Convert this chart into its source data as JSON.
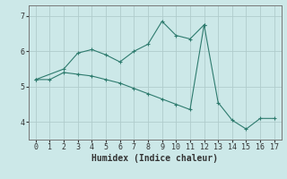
{
  "line1_x": [
    0,
    1,
    2,
    3,
    4,
    5,
    6,
    7,
    8,
    9,
    10,
    11,
    12,
    13,
    14,
    15,
    16,
    17
  ],
  "line1_y": [
    5.2,
    5.2,
    5.4,
    5.35,
    5.3,
    5.2,
    5.1,
    4.95,
    4.8,
    4.65,
    4.5,
    4.35,
    6.75,
    4.55,
    4.05,
    3.8,
    4.1,
    4.1
  ],
  "line2_x": [
    0,
    2,
    3,
    4,
    5,
    6,
    7,
    8,
    9,
    10,
    11,
    12
  ],
  "line2_y": [
    5.2,
    5.5,
    5.95,
    6.05,
    5.9,
    5.7,
    6.0,
    6.2,
    6.85,
    6.45,
    6.35,
    6.75
  ],
  "line_color": "#2e7b6e",
  "bg_color": "#cce8e8",
  "grid_color": "#b0cccc",
  "xlabel": "Humidex (Indice chaleur)",
  "xlabel_fontsize": 7,
  "xlim": [
    -0.5,
    17.5
  ],
  "ylim": [
    3.5,
    7.3
  ],
  "yticks": [
    4,
    5,
    6,
    7
  ],
  "xticks": [
    0,
    1,
    2,
    3,
    4,
    5,
    6,
    7,
    8,
    9,
    10,
    11,
    12,
    13,
    14,
    15,
    16,
    17
  ]
}
